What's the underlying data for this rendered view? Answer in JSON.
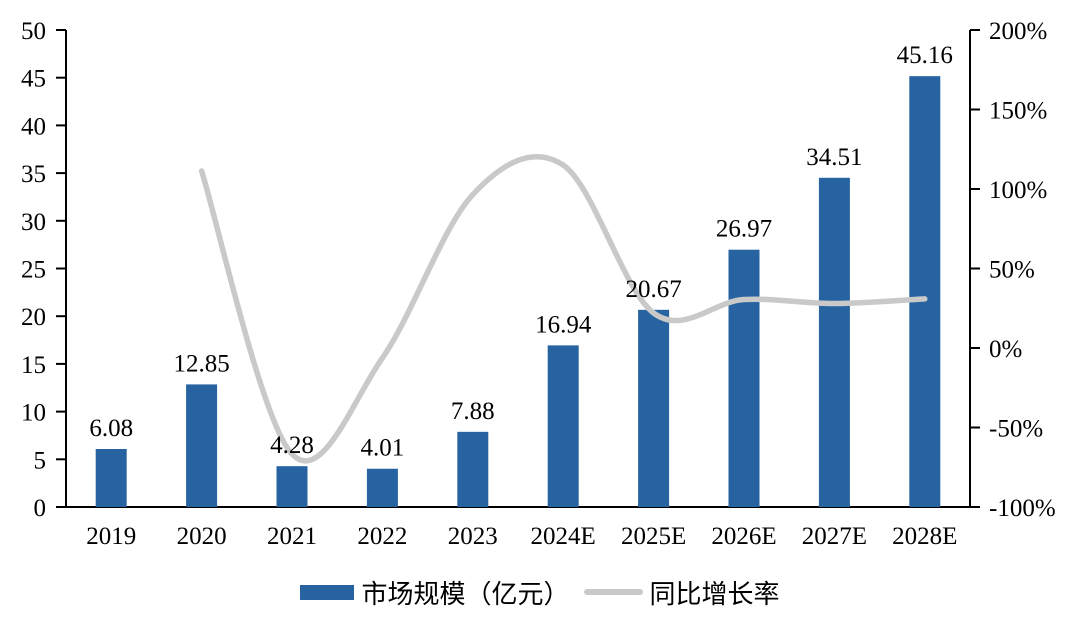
{
  "chart_data": {
    "type": "bar",
    "subtype": "bar+line-combo",
    "title": "",
    "categories": [
      "2019",
      "2020",
      "2021",
      "2022",
      "2023",
      "2024E",
      "2025E",
      "2026E",
      "2027E",
      "2028E"
    ],
    "series": [
      {
        "name": "市场规模（亿元）",
        "type": "bar",
        "axis": "left",
        "color": "#2663A0",
        "values": [
          6.08,
          12.85,
          4.28,
          4.01,
          7.88,
          16.94,
          20.67,
          26.97,
          34.51,
          45.16
        ],
        "data_labels": [
          "6.08",
          "12.85",
          "4.28",
          "4.01",
          "7.88",
          "16.94",
          "20.67",
          "26.97",
          "34.51",
          "45.16"
        ]
      },
      {
        "name": "同比增长率",
        "type": "line",
        "axis": "right",
        "unit": "%",
        "color": "#C9C9C9",
        "smoothed": true,
        "values": [
          null,
          111.3,
          -66.7,
          -6.3,
          96.5,
          115.0,
          22.0,
          30.5,
          28.0,
          30.9
        ]
      }
    ],
    "left_axis": {
      "min": 0,
      "max": 50,
      "step": 5,
      "tick_labels": [
        "0",
        "5",
        "10",
        "15",
        "20",
        "25",
        "30",
        "35",
        "40",
        "45",
        "50"
      ]
    },
    "right_axis": {
      "min": -100,
      "max": 200,
      "step": 50,
      "tick_labels": [
        "-100%",
        "-50%",
        "0%",
        "50%",
        "100%",
        "150%",
        "200%"
      ]
    },
    "legend": {
      "position": "bottom",
      "items": [
        "市场规模（亿元）",
        "同比增长率"
      ]
    },
    "grid": false,
    "background": "#FFFFFF",
    "axis_color": "#000000",
    "text_color": "#000000"
  }
}
